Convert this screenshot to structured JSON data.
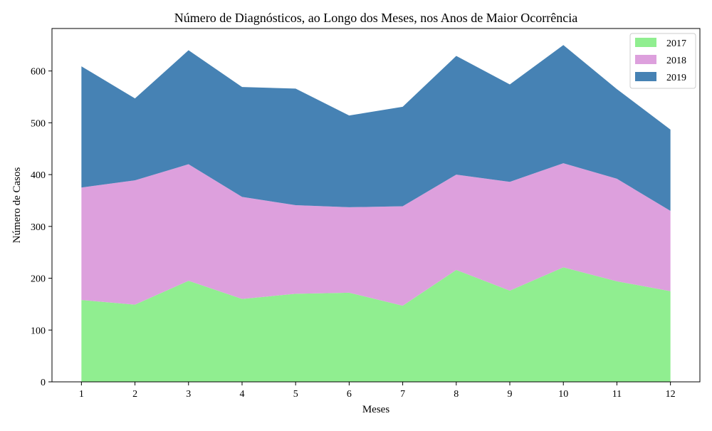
{
  "chart_data": {
    "type": "area",
    "stacked": true,
    "title": "Número de Diagnósticos, ao Longo dos Meses, nos Anos de Maior Ocorrência",
    "xlabel": "Meses",
    "ylabel": "Número de Casos",
    "x": [
      1,
      2,
      3,
      4,
      5,
      6,
      7,
      8,
      9,
      10,
      11,
      12
    ],
    "x_tick_labels": [
      "1",
      "2",
      "3",
      "4",
      "5",
      "6",
      "7",
      "8",
      "9",
      "10",
      "11",
      "12"
    ],
    "y_ticks": [
      0,
      100,
      200,
      300,
      400,
      500,
      600
    ],
    "y_tick_labels": [
      "0",
      "100",
      "200",
      "300",
      "400",
      "500",
      "600"
    ],
    "ylim": [
      0,
      682
    ],
    "grid": false,
    "legend_position": "top-right",
    "series": [
      {
        "name": "2017",
        "color": "#90ee90",
        "values": [
          158,
          149,
          195,
          160,
          170,
          172,
          147,
          216,
          176,
          221,
          194,
          175
        ]
      },
      {
        "name": "2018",
        "color": "#dda0dd",
        "values": [
          217,
          240,
          225,
          197,
          171,
          165,
          192,
          184,
          210,
          201,
          198,
          155
        ]
      },
      {
        "name": "2019",
        "color": "#4682b4",
        "values": [
          234,
          158,
          220,
          212,
          225,
          177,
          192,
          229,
          188,
          228,
          173,
          157
        ]
      }
    ]
  }
}
